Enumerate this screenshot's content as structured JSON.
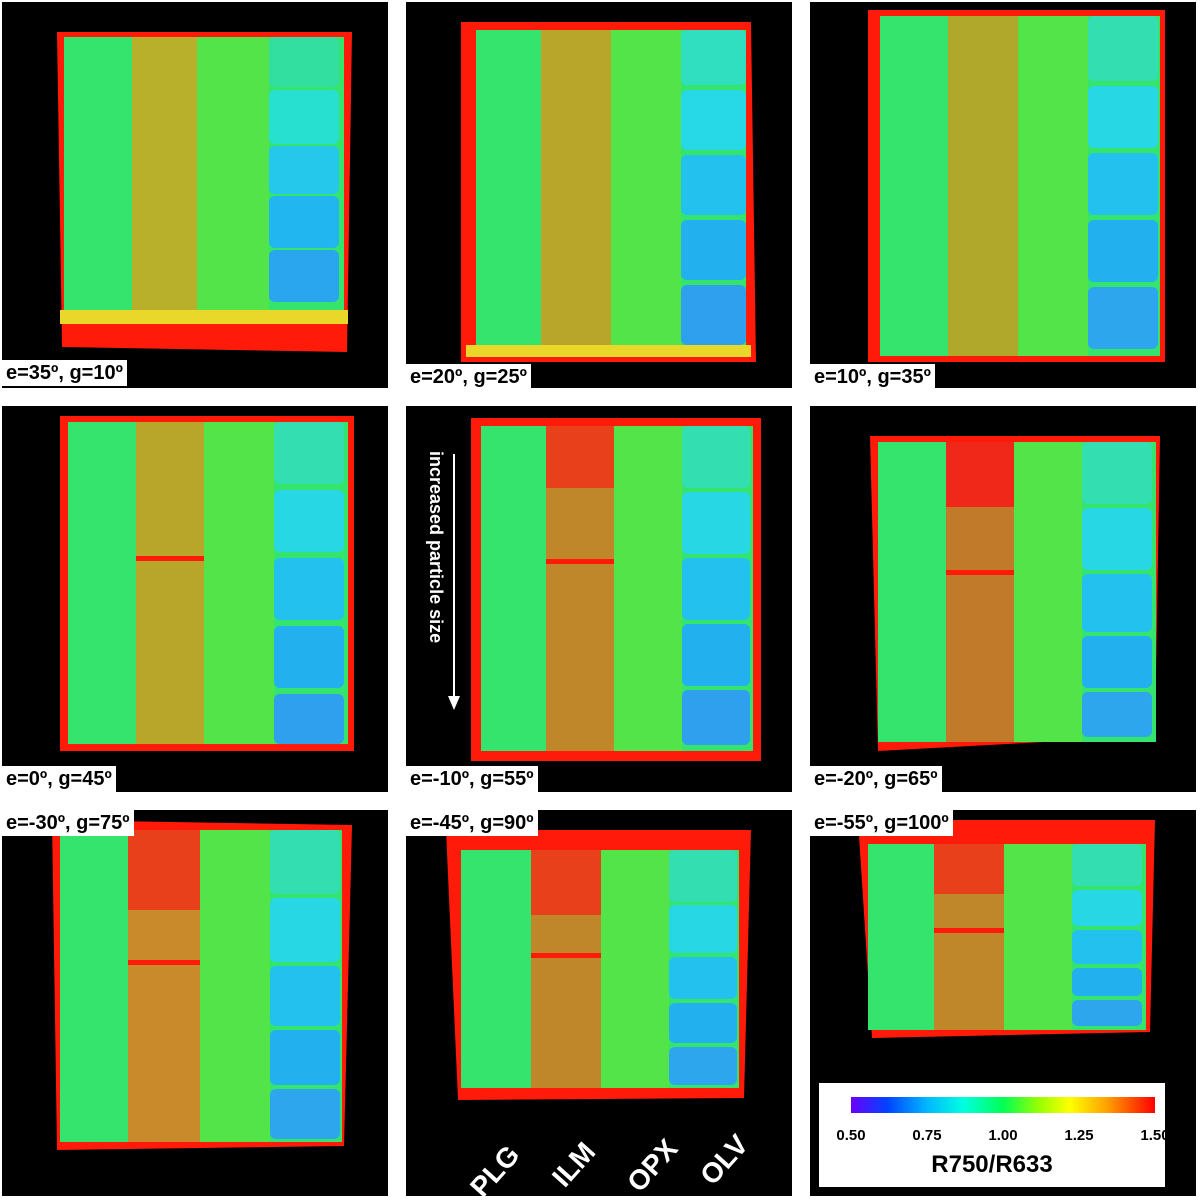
{
  "panels": [
    {
      "label": "e=35º, g=10º"
    },
    {
      "label": "e=20º, g=25º"
    },
    {
      "label": "e=10º, g=35º"
    },
    {
      "label": "e=0º, g=45º"
    },
    {
      "label": "e=-10º, g=55º"
    },
    {
      "label": "e=-20º, g=65º"
    },
    {
      "label": "e=-30º, g=75º"
    },
    {
      "label": "e=-45º, g=90º"
    },
    {
      "label": "e=-55º, g=100º"
    }
  ],
  "annotation": {
    "arrow_text": "increased particle size"
  },
  "minerals": [
    "PLG",
    "ILM",
    "OPX",
    "OLV"
  ],
  "colorbar": {
    "title": "R750/R633",
    "ticks": [
      "0.50",
      "0.75",
      "1.00",
      "1.25",
      "1.50"
    ]
  },
  "colors": {
    "background": "#000000",
    "plg": "#2ee86a",
    "ilm_low": "#e0a020",
    "ilm_high": "#ff2a1a",
    "opx": "#5fe63a",
    "olv": "#27d3e8",
    "edge": "#ff1a0a"
  }
}
